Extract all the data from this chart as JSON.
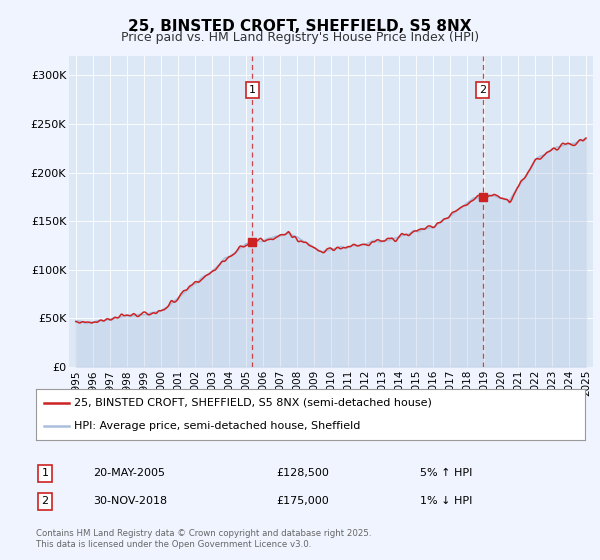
{
  "title": "25, BINSTED CROFT, SHEFFIELD, S5 8NX",
  "subtitle": "Price paid vs. HM Land Registry's House Price Index (HPI)",
  "legend_line1": "25, BINSTED CROFT, SHEFFIELD, S5 8NX (semi-detached house)",
  "legend_line2": "HPI: Average price, semi-detached house, Sheffield",
  "annotation1_date": "20-MAY-2005",
  "annotation1_price": "£128,500",
  "annotation1_hpi": "5% ↑ HPI",
  "annotation2_date": "30-NOV-2018",
  "annotation2_price": "£175,000",
  "annotation2_hpi": "1% ↓ HPI",
  "footnote": "Contains HM Land Registry data © Crown copyright and database right 2025.\nThis data is licensed under the Open Government Licence v3.0.",
  "vline1_x": 2005.38,
  "vline2_x": 2018.92,
  "marker1_x": 2005.38,
  "marker1_y": 128500,
  "marker2_x": 2018.92,
  "marker2_y": 175000,
  "ylim": [
    0,
    320000
  ],
  "xlim": [
    1994.6,
    2025.4
  ],
  "yticks": [
    0,
    50000,
    100000,
    150000,
    200000,
    250000,
    300000
  ],
  "ytick_labels": [
    "£0",
    "£50K",
    "£100K",
    "£150K",
    "£200K",
    "£250K",
    "£300K"
  ],
  "xticks": [
    1995,
    1996,
    1997,
    1998,
    1999,
    2000,
    2001,
    2002,
    2003,
    2004,
    2005,
    2006,
    2007,
    2008,
    2009,
    2010,
    2011,
    2012,
    2013,
    2014,
    2015,
    2016,
    2017,
    2018,
    2019,
    2020,
    2021,
    2022,
    2023,
    2024,
    2025
  ],
  "hpi_color": "#aabfdd",
  "price_color": "#cc2222",
  "vline_color": "#cc3333",
  "bg_color": "#f0f4ff",
  "plot_bg": "#dce8f5",
  "grid_color": "#ffffff",
  "annot_box_color": "#cc2222"
}
